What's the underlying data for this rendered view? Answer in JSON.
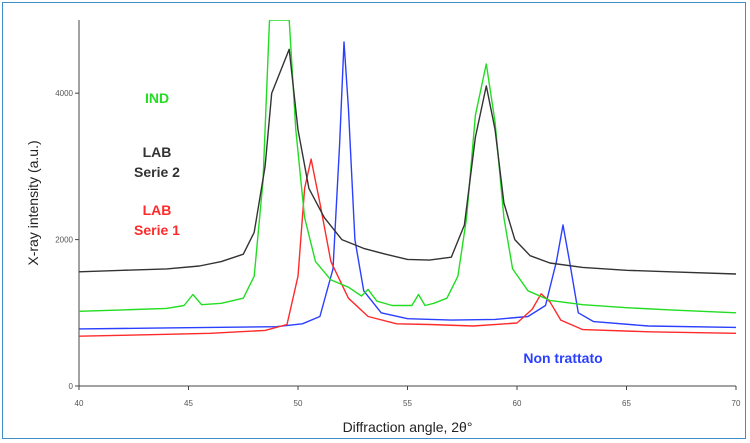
{
  "chart_data": {
    "type": "line",
    "title": "",
    "xlabel": "Diffraction angle, 2θ°",
    "ylabel": "X-ray intensity (a.u.)",
    "xlim": [
      40,
      70
    ],
    "ylim": [
      0,
      5000
    ],
    "x_ticks": [
      "40",
      "45",
      "50",
      "55",
      "60",
      "65",
      "70"
    ],
    "y_ticks": [
      "0",
      "2000",
      "4000"
    ],
    "grid": false,
    "series": [
      {
        "name": "IND",
        "color": "#22dd22",
        "label_lines": [
          "IND"
        ],
        "points": [
          [
            40,
            1020
          ],
          [
            42,
            1040
          ],
          [
            44,
            1060
          ],
          [
            44.8,
            1100
          ],
          [
            45.2,
            1250
          ],
          [
            45.6,
            1110
          ],
          [
            46.5,
            1130
          ],
          [
            47.5,
            1200
          ],
          [
            48,
            1500
          ],
          [
            48.4,
            2800
          ],
          [
            48.7,
            5000
          ],
          [
            49.6,
            5000
          ],
          [
            49.9,
            3500
          ],
          [
            50.3,
            2300
          ],
          [
            50.8,
            1700
          ],
          [
            51.5,
            1450
          ],
          [
            52.3,
            1350
          ],
          [
            52.9,
            1230
          ],
          [
            53.2,
            1320
          ],
          [
            53.6,
            1160
          ],
          [
            54.3,
            1100
          ],
          [
            55.2,
            1100
          ],
          [
            55.5,
            1250
          ],
          [
            55.8,
            1100
          ],
          [
            56.2,
            1130
          ],
          [
            56.8,
            1200
          ],
          [
            57.3,
            1500
          ],
          [
            57.7,
            2300
          ],
          [
            58.1,
            3700
          ],
          [
            58.6,
            4400
          ],
          [
            59.0,
            3600
          ],
          [
            59.4,
            2300
          ],
          [
            59.8,
            1600
          ],
          [
            60.5,
            1300
          ],
          [
            61.5,
            1170
          ],
          [
            63,
            1110
          ],
          [
            65,
            1070
          ],
          [
            67,
            1040
          ],
          [
            70,
            1000
          ]
        ]
      },
      {
        "name": "LAB Serie 2",
        "color": "#333333",
        "label_lines": [
          "LAB",
          "Serie 2"
        ],
        "points": [
          [
            40,
            1560
          ],
          [
            42,
            1580
          ],
          [
            44,
            1600
          ],
          [
            45.5,
            1640
          ],
          [
            46.5,
            1700
          ],
          [
            47.5,
            1800
          ],
          [
            48,
            2100
          ],
          [
            48.5,
            3000
          ],
          [
            48.8,
            4000
          ],
          [
            49.6,
            4600
          ],
          [
            50.0,
            3500
          ],
          [
            50.5,
            2700
          ],
          [
            51.2,
            2300
          ],
          [
            52,
            2000
          ],
          [
            53,
            1880
          ],
          [
            54,
            1800
          ],
          [
            55,
            1730
          ],
          [
            56,
            1720
          ],
          [
            57,
            1760
          ],
          [
            57.6,
            2200
          ],
          [
            58.1,
            3400
          ],
          [
            58.6,
            4100
          ],
          [
            59.0,
            3500
          ],
          [
            59.4,
            2500
          ],
          [
            59.9,
            2000
          ],
          [
            60.6,
            1780
          ],
          [
            61.5,
            1680
          ],
          [
            63,
            1620
          ],
          [
            65,
            1580
          ],
          [
            67,
            1560
          ],
          [
            70,
            1530
          ]
        ]
      },
      {
        "name": "LAB Serie 1",
        "color": "#ff2a2a",
        "label_lines": [
          "LAB",
          "Serie 1"
        ],
        "points": [
          [
            40,
            680
          ],
          [
            43,
            700
          ],
          [
            46,
            720
          ],
          [
            48.5,
            760
          ],
          [
            49.5,
            840
          ],
          [
            50.0,
            1500
          ],
          [
            50.3,
            2700
          ],
          [
            50.6,
            3100
          ],
          [
            51.0,
            2500
          ],
          [
            51.5,
            1700
          ],
          [
            52.3,
            1200
          ],
          [
            53.2,
            950
          ],
          [
            54.5,
            850
          ],
          [
            56,
            840
          ],
          [
            58,
            820
          ],
          [
            60,
            860
          ],
          [
            60.7,
            1050
          ],
          [
            61.1,
            1260
          ],
          [
            61.5,
            1150
          ],
          [
            62,
            900
          ],
          [
            63,
            770
          ],
          [
            66,
            740
          ],
          [
            70,
            720
          ]
        ]
      },
      {
        "name": "Non trattato",
        "color": "#2a3fff",
        "label_lines": [
          "Non trattato"
        ],
        "points": [
          [
            40,
            780
          ],
          [
            43,
            790
          ],
          [
            46,
            800
          ],
          [
            49,
            810
          ],
          [
            50.2,
            850
          ],
          [
            51,
            950
          ],
          [
            51.6,
            1600
          ],
          [
            51.9,
            3300
          ],
          [
            52.1,
            4700
          ],
          [
            52.3,
            3800
          ],
          [
            52.6,
            2000
          ],
          [
            53,
            1300
          ],
          [
            53.8,
            1000
          ],
          [
            55,
            920
          ],
          [
            57,
            900
          ],
          [
            59,
            910
          ],
          [
            60.5,
            950
          ],
          [
            61.3,
            1100
          ],
          [
            61.8,
            1700
          ],
          [
            62.1,
            2200
          ],
          [
            62.4,
            1700
          ],
          [
            62.8,
            1000
          ],
          [
            63.5,
            880
          ],
          [
            66,
            820
          ],
          [
            70,
            800
          ]
        ]
      }
    ],
    "annotations": []
  }
}
